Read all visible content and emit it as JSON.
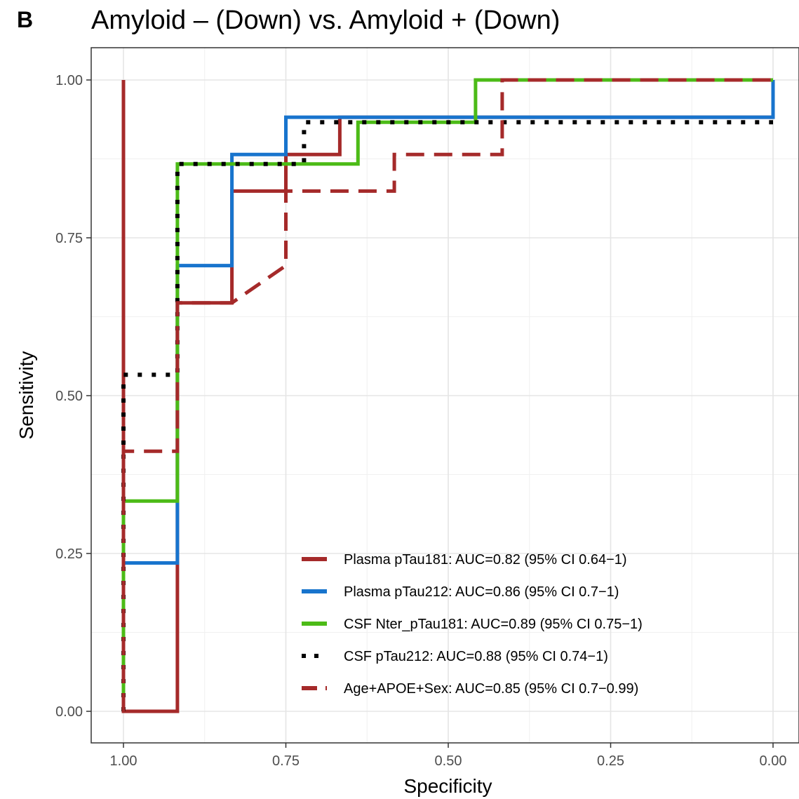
{
  "panel_letter": "B",
  "chart_data": {
    "type": "line",
    "title": "Amyloid – (Down) vs. Amyloid + (Down)",
    "xlabel": "Specificity",
    "ylabel": "Sensitivity",
    "xlim": [
      1.0,
      0.0
    ],
    "ylim": [
      0.0,
      1.0
    ],
    "x_reversed": true,
    "grid": true,
    "legend_position": "bottom-right",
    "x_ticks": [
      "1.00",
      "0.75",
      "0.50",
      "0.25",
      "0.00"
    ],
    "y_ticks": [
      "0.00",
      "0.25",
      "0.50",
      "0.75",
      "1.00"
    ],
    "series": [
      {
        "name": "Plasma pTau181: AUC=0.82 (95% CI 0.64−1)",
        "color": "#A52A2A",
        "style": "solid",
        "x": [
          1.0,
          1.0,
          0.917,
          0.917,
          0.833,
          0.833,
          0.75,
          0.75,
          0.667,
          0.667,
          0.0
        ],
        "y": [
          1.0,
          0.0,
          0.0,
          0.647,
          0.647,
          0.824,
          0.824,
          0.882,
          0.882,
          0.941,
          0.941
        ]
      },
      {
        "name": "Plasma pTau212: AUC=0.86 (95% CI 0.7−1)",
        "color": "#1874CD",
        "style": "solid",
        "x": [
          1.0,
          0.917,
          0.917,
          0.833,
          0.833,
          0.75,
          0.75,
          0.0,
          0.0
        ],
        "y": [
          0.235,
          0.235,
          0.706,
          0.706,
          0.882,
          0.882,
          0.941,
          0.941,
          1.0
        ]
      },
      {
        "name": "CSF Nter_pTau181: AUC=0.89 (95% CI 0.75−1)",
        "color": "#4CBB17",
        "style": "solid",
        "x": [
          1.0,
          1.0,
          0.917,
          0.917,
          0.639,
          0.639,
          0.458,
          0.458,
          0.0
        ],
        "y": [
          0.0,
          0.333,
          0.333,
          0.867,
          0.867,
          0.933,
          0.933,
          1.0,
          1.0
        ]
      },
      {
        "name": "CSF pTau212: AUC=0.88 (95% CI 0.74−1)",
        "color": "#000000",
        "style": "dotted",
        "x": [
          1.0,
          1.0,
          0.917,
          0.917,
          0.722,
          0.722,
          0.0
        ],
        "y": [
          0.0,
          0.533,
          0.533,
          0.867,
          0.867,
          0.933,
          0.933
        ]
      },
      {
        "name": "Age+APOE+Sex: AUC=0.85 (95% CI 0.7−0.99)",
        "color": "#A52A2A",
        "style": "dashed",
        "x": [
          1.0,
          1.0,
          0.917,
          0.917,
          0.833,
          0.75,
          0.75,
          0.583,
          0.583,
          0.417,
          0.417,
          0.0
        ],
        "y": [
          0.0,
          0.412,
          0.412,
          0.647,
          0.647,
          0.706,
          0.824,
          0.824,
          0.882,
          0.882,
          1.0,
          1.0
        ]
      }
    ]
  }
}
